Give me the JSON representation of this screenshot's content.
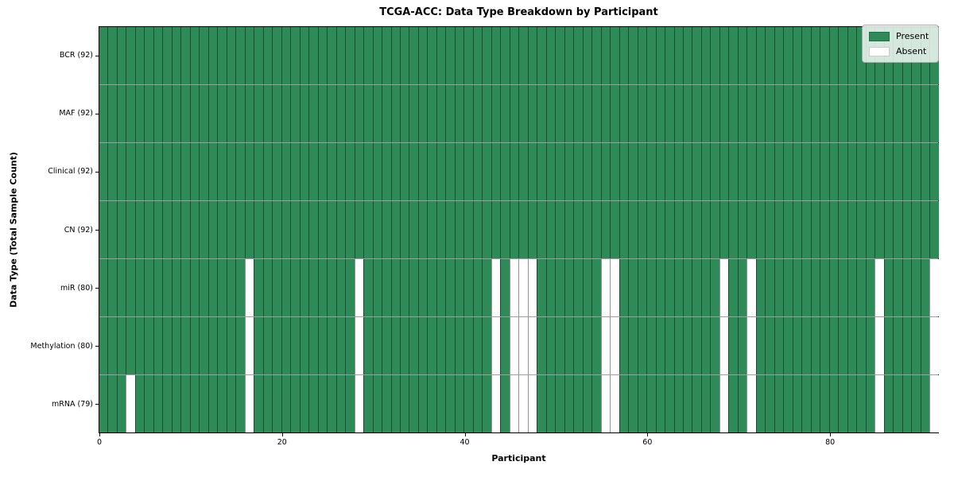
{
  "figure": {
    "title": "TCGA-ACC: Data Type Breakdown by Participant",
    "xlabel": "Participant",
    "ylabel": "Data Type (Total Sample Count)"
  },
  "legend": {
    "items": [
      {
        "label": "Present",
        "color": "#2e8b57"
      },
      {
        "label": "Absent",
        "color": "#ffffff"
      }
    ]
  },
  "chart_data": {
    "type": "heatmap",
    "title": "TCGA-ACC: Data Type Breakdown by Participant",
    "xlabel": "Participant",
    "ylabel": "Data Type (Total Sample Count)",
    "n_participants": 92,
    "x_ticks": [
      0,
      20,
      40,
      60,
      80
    ],
    "present_color": "#2e8b57",
    "absent_color": "#ffffff",
    "grid": true,
    "legend_position": "upper right",
    "rows": [
      {
        "label": "BCR (92)",
        "present_count": 92,
        "absent_participants": []
      },
      {
        "label": "MAF (92)",
        "present_count": 92,
        "absent_participants": []
      },
      {
        "label": "Clinical (92)",
        "present_count": 92,
        "absent_participants": []
      },
      {
        "label": "CN (92)",
        "present_count": 92,
        "absent_participants": []
      },
      {
        "label": "miR (80)",
        "present_count": 80,
        "absent_participants": [
          16,
          28,
          43,
          45,
          46,
          47,
          55,
          56,
          68,
          71,
          85,
          91
        ]
      },
      {
        "label": "Methylation (80)",
        "present_count": 80,
        "absent_participants": [
          16,
          28,
          43,
          45,
          46,
          47,
          55,
          56,
          68,
          71,
          85,
          91
        ]
      },
      {
        "label": "mRNA (79)",
        "present_count": 79,
        "absent_participants": [
          3,
          16,
          28,
          43,
          45,
          46,
          47,
          55,
          56,
          68,
          71,
          85,
          91
        ]
      }
    ]
  }
}
